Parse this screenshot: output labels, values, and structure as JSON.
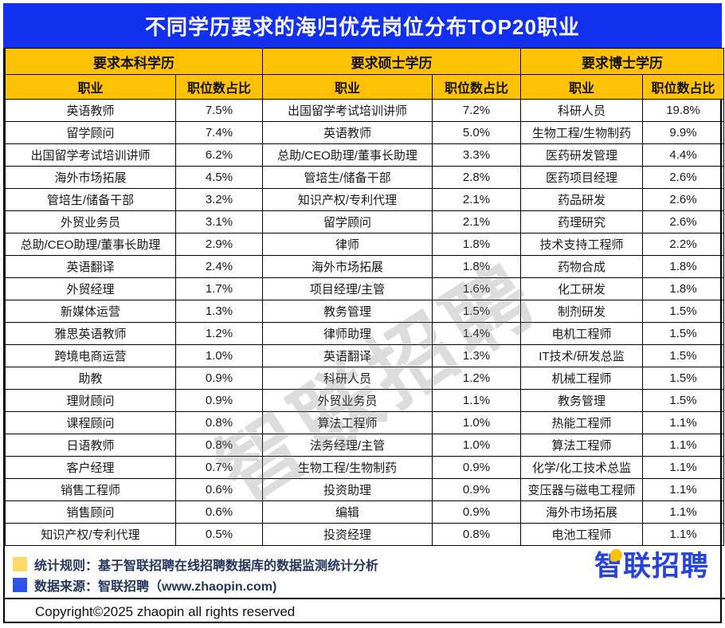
{
  "title": "不同学历要求的海归优先岗位分布TOP20职业",
  "watermark": "智联招聘",
  "colors": {
    "title_bar_blue": "#1230F0",
    "header_yellow": "#FFC103",
    "legend_yellow": "#FFD966",
    "legend_blue": "#2B53F0",
    "logo_blue": "#2743DF"
  },
  "chart_data": {
    "type": "table",
    "title": "不同学历要求的海归优先岗位分布TOP20职业",
    "groups": [
      {
        "name": "要求本科学历",
        "columns": [
          "职业",
          "职位数占比"
        ],
        "rows": [
          [
            "英语教师",
            "7.5%"
          ],
          [
            "留学顾问",
            "7.4%"
          ],
          [
            "出国留学考试培训讲师",
            "6.2%"
          ],
          [
            "海外市场拓展",
            "4.5%"
          ],
          [
            "管培生/储备干部",
            "3.2%"
          ],
          [
            "外贸业务员",
            "3.1%"
          ],
          [
            "总助/CEO助理/董事长助理",
            "2.9%"
          ],
          [
            "英语翻译",
            "2.4%"
          ],
          [
            "外贸经理",
            "1.7%"
          ],
          [
            "新媒体运营",
            "1.3%"
          ],
          [
            "雅思英语教师",
            "1.2%"
          ],
          [
            "跨境电商运营",
            "1.0%"
          ],
          [
            "助教",
            "0.9%"
          ],
          [
            "理财顾问",
            "0.9%"
          ],
          [
            "课程顾问",
            "0.8%"
          ],
          [
            "日语教师",
            "0.8%"
          ],
          [
            "客户经理",
            "0.7%"
          ],
          [
            "销售工程师",
            "0.6%"
          ],
          [
            "销售顾问",
            "0.6%"
          ],
          [
            "知识产权/专利代理",
            "0.5%"
          ]
        ]
      },
      {
        "name": "要求硕士学历",
        "columns": [
          "职业",
          "职位数占比"
        ],
        "rows": [
          [
            "出国留学考试培训讲师",
            "7.2%"
          ],
          [
            "英语教师",
            "5.0%"
          ],
          [
            "总助/CEO助理/董事长助理",
            "3.3%"
          ],
          [
            "管培生/储备干部",
            "2.8%"
          ],
          [
            "知识产权/专利代理",
            "2.1%"
          ],
          [
            "留学顾问",
            "2.1%"
          ],
          [
            "律师",
            "1.8%"
          ],
          [
            "海外市场拓展",
            "1.8%"
          ],
          [
            "项目经理/主管",
            "1.6%"
          ],
          [
            "教务管理",
            "1.5%"
          ],
          [
            "律师助理",
            "1.4%"
          ],
          [
            "英语翻译",
            "1.3%"
          ],
          [
            "科研人员",
            "1.2%"
          ],
          [
            "外贸业务员",
            "1.1%"
          ],
          [
            "算法工程师",
            "1.0%"
          ],
          [
            "法务经理/主管",
            "1.0%"
          ],
          [
            "生物工程/生物制药",
            "0.9%"
          ],
          [
            "投资助理",
            "0.9%"
          ],
          [
            "编辑",
            "0.9%"
          ],
          [
            "投资经理",
            "0.8%"
          ]
        ]
      },
      {
        "name": "要求博士学历",
        "columns": [
          "职业",
          "职位数占比"
        ],
        "rows": [
          [
            "科研人员",
            "19.8%"
          ],
          [
            "生物工程/生物制药",
            "9.9%"
          ],
          [
            "医药研发管理",
            "4.4%"
          ],
          [
            "医药项目经理",
            "2.6%"
          ],
          [
            "药品研发",
            "2.6%"
          ],
          [
            "药理研究",
            "2.6%"
          ],
          [
            "技术支持工程师",
            "2.2%"
          ],
          [
            "药物合成",
            "1.8%"
          ],
          [
            "化工研发",
            "1.8%"
          ],
          [
            "制剂研发",
            "1.5%"
          ],
          [
            "电机工程师",
            "1.5%"
          ],
          [
            "IT技术/研发总监",
            "1.5%"
          ],
          [
            "机械工程师",
            "1.5%"
          ],
          [
            "教务管理",
            "1.5%"
          ],
          [
            "热能工程师",
            "1.1%"
          ],
          [
            "算法工程师",
            "1.1%"
          ],
          [
            "化学/化工技术总监",
            "1.1%"
          ],
          [
            "变压器与磁电工程师",
            "1.1%"
          ],
          [
            "海外市场拓展",
            "1.1%"
          ],
          [
            "电池工程师",
            "1.1%"
          ]
        ]
      }
    ]
  },
  "footer": {
    "legend": [
      {
        "swatch_color": "#FFD966",
        "text": "统计规则：基于智联招聘在线招聘数据库的数据监测统计分析"
      },
      {
        "swatch_color": "#2B53F0",
        "text": "数据来源：智联招聘（www.zhaopin.com)"
      }
    ],
    "copyright": "Copyright©2025 zhaopin all rights reserved",
    "logo_text": "智联招聘"
  }
}
